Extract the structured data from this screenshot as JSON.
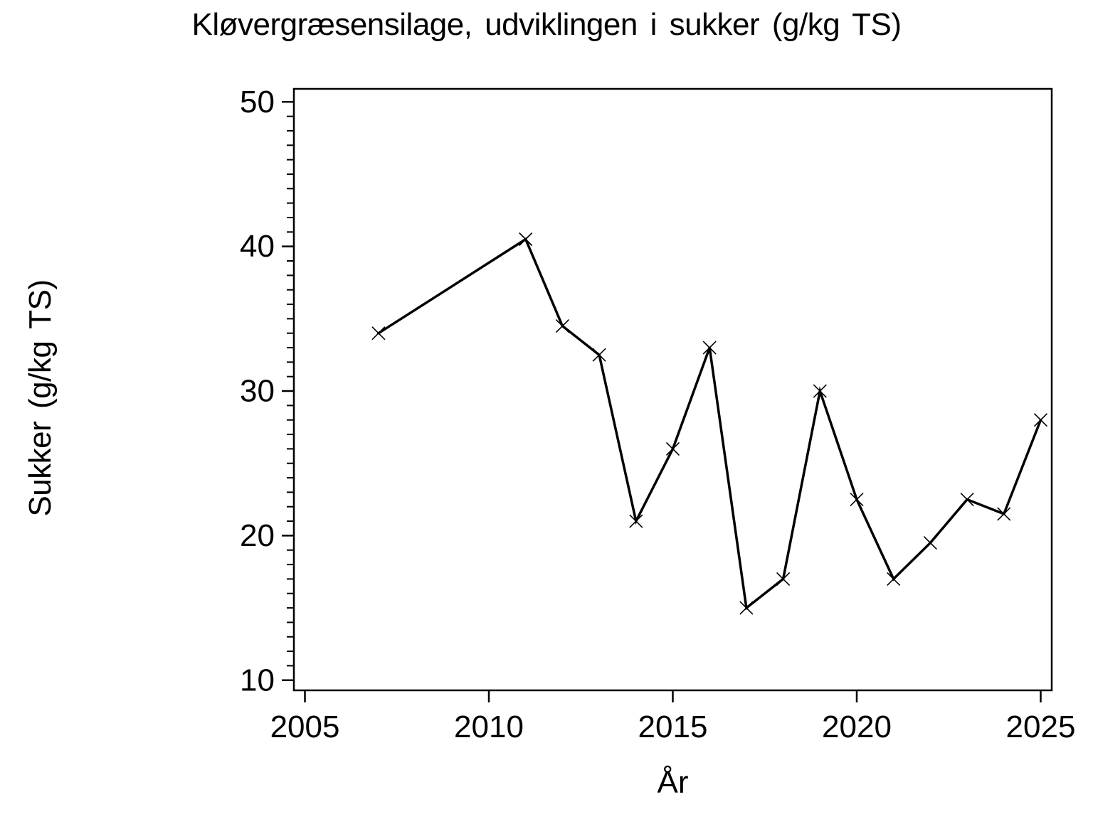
{
  "chart_data": {
    "type": "line",
    "title": "Kløvergræsensilage, udviklingen i sukker (g/kg TS)",
    "xlabel": "År",
    "ylabel": "Sukker (g/kg TS)",
    "series": [
      {
        "name": "Sukker (g/kg TS)",
        "x": [
          2007,
          2011,
          2012,
          2013,
          2014,
          2015,
          2016,
          2017,
          2018,
          2019,
          2020,
          2021,
          2022,
          2023,
          2024,
          2025
        ],
        "values": [
          34,
          40.5,
          34.5,
          32.5,
          21,
          26,
          33,
          15,
          17,
          30,
          22.5,
          17,
          19.5,
          22.5,
          21.5,
          28
        ]
      }
    ],
    "marker": "x",
    "line_color": "#000000",
    "background_color": "#ffffff",
    "xlim": [
      2004.7,
      2025.3
    ],
    "ylim": [
      9.3,
      50.9
    ],
    "x_ticks": [
      2005,
      2010,
      2015,
      2020,
      2025
    ],
    "y_ticks": [
      10,
      20,
      30,
      40,
      50
    ],
    "y_minor_tick_step": 1,
    "grid": false,
    "legend": false,
    "frame": "box"
  }
}
